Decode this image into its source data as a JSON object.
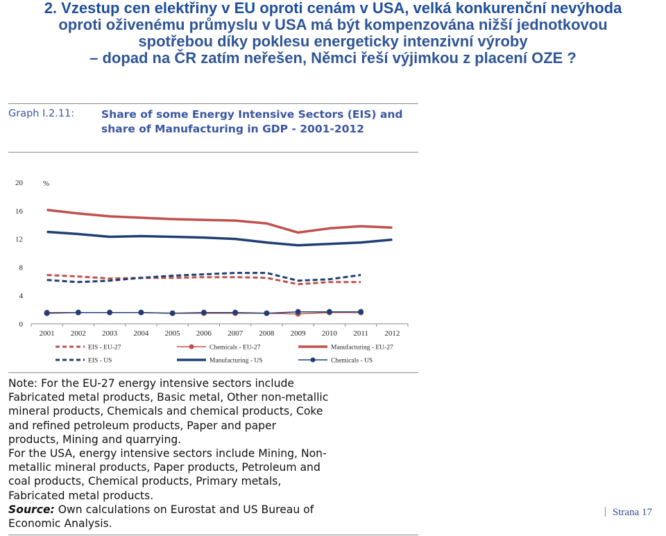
{
  "slide": {
    "title_first": "2. Vzestup cen elektřiny v EU oproti cenám v USA, velká konkurenční nevýhoda",
    "title_rest": [
      "oproti oživenému průmyslu v USA má být kompenzována nižší jednotkovou",
      "spotřebou díky poklesu energeticky intenzivní výroby",
      "– dopad na ČR zatím neřešen, Němci řeší výjimkou z placení OZE ?"
    ],
    "footer": "Strana 17"
  },
  "figure": {
    "graph_label": "Graph I.2.11:",
    "graph_title": "Share of some Energy Intensive Sectors (EIS) and share of Manufacturing in GDP - 2001-2012",
    "note_lines": [
      "Note: For the EU-27 energy intensive sectors include",
      "Fabricated metal products, Basic metal, Other non-metallic",
      "mineral products, Chemicals and chemical products, Coke",
      "and refined petroleum products, Paper and paper",
      "products, Mining and quarrying.",
      "For the USA, energy intensive sectors include Mining, Non-",
      "metallic mineral products, Paper products, Petroleum and",
      "coal products, Chemical products, Primary metals,",
      "Fabricated metal products."
    ],
    "source_label": "Source:",
    "source_lines": [
      "Own calculations on Eurostat and US Bureau of",
      "Economic Analysis."
    ]
  },
  "chart_data": {
    "type": "line",
    "ylabel": "%",
    "ylim": [
      0,
      20
    ],
    "yticks": [
      0,
      4,
      8,
      12,
      16,
      20
    ],
    "categories": [
      "2001",
      "2002",
      "2003",
      "2004",
      "2005",
      "2006",
      "2007",
      "2008",
      "2009",
      "2010",
      "2011",
      "2012"
    ],
    "grid": false,
    "legend_position": "bottom",
    "series": [
      {
        "name": "EIS - EU-27",
        "color": "#c0504d",
        "style": "dashed",
        "marker": false,
        "values": [
          6.9,
          6.7,
          6.4,
          6.5,
          6.5,
          6.6,
          6.6,
          6.5,
          5.6,
          5.9,
          5.9,
          null
        ]
      },
      {
        "name": "Chemicals - EU-27",
        "color": "#c0504d",
        "style": "solid-thin",
        "marker": true,
        "values": [
          1.6,
          1.6,
          1.6,
          1.6,
          1.5,
          1.5,
          1.5,
          1.5,
          1.4,
          1.6,
          1.6,
          null
        ]
      },
      {
        "name": "Manufacturing - EU-27",
        "color": "#c0504d",
        "style": "solid",
        "marker": false,
        "values": [
          16.1,
          15.6,
          15.2,
          15.0,
          14.8,
          14.7,
          14.6,
          14.2,
          12.9,
          13.5,
          13.8,
          13.6
        ]
      },
      {
        "name": "EIS - US",
        "color": "#1f3f73",
        "style": "dashed",
        "marker": false,
        "values": [
          6.2,
          5.9,
          6.1,
          6.5,
          6.8,
          7.0,
          7.2,
          7.2,
          6.1,
          6.3,
          6.9,
          null
        ]
      },
      {
        "name": "Manufacturing - US",
        "color": "#1f3f73",
        "style": "solid",
        "marker": false,
        "values": [
          13.0,
          12.7,
          12.3,
          12.4,
          12.3,
          12.2,
          12.0,
          11.5,
          11.1,
          11.3,
          11.5,
          11.9
        ]
      },
      {
        "name": "Chemicals - US",
        "color": "#1f3f73",
        "style": "solid-thin",
        "marker": true,
        "values": [
          1.5,
          1.6,
          1.6,
          1.6,
          1.5,
          1.6,
          1.6,
          1.5,
          1.7,
          1.7,
          1.7,
          null
        ]
      }
    ]
  }
}
